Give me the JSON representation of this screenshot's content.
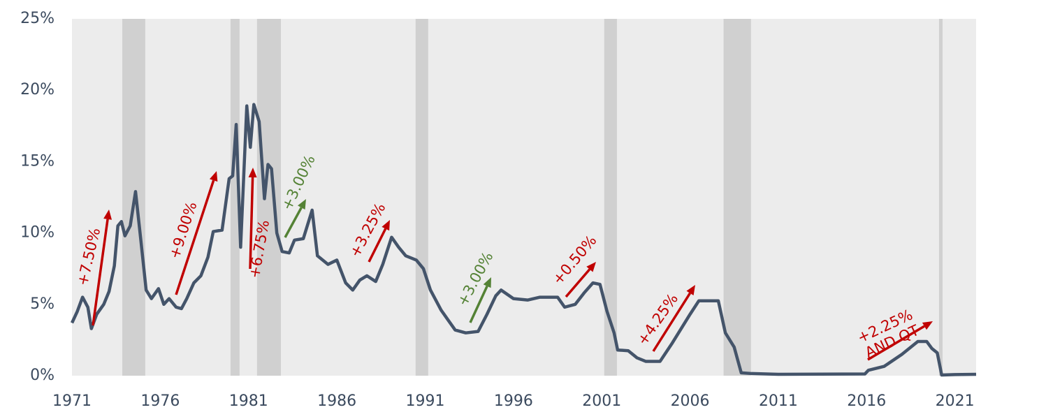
{
  "chart_data": {
    "type": "line",
    "x": [
      1971.0,
      1971.3,
      1971.6,
      1971.9,
      1972.1,
      1972.4,
      1972.8,
      1973.1,
      1973.4,
      1973.6,
      1973.8,
      1974.0,
      1974.3,
      1974.6,
      1974.9,
      1975.2,
      1975.5,
      1975.9,
      1976.2,
      1976.5,
      1976.9,
      1977.2,
      1977.5,
      1977.9,
      1978.3,
      1978.7,
      1979.0,
      1979.5,
      1979.9,
      1980.1,
      1980.3,
      1980.55,
      1980.9,
      1981.1,
      1981.3,
      1981.6,
      1981.9,
      1982.1,
      1982.3,
      1982.6,
      1982.9,
      1983.3,
      1983.6,
      1984.1,
      1984.6,
      1984.9,
      1985.5,
      1986.0,
      1986.5,
      1986.9,
      1987.3,
      1987.7,
      1988.2,
      1988.6,
      1989.1,
      1989.5,
      1989.9,
      1990.5,
      1990.9,
      1991.3,
      1991.9,
      1992.3,
      1992.7,
      1993.3,
      1994.0,
      1994.5,
      1995.0,
      1995.3,
      1996.0,
      1996.8,
      1997.5,
      1998.5,
      1998.9,
      1999.5,
      2000.0,
      2000.5,
      2000.9,
      2001.3,
      2001.7,
      2001.9,
      2002.5,
      2003.0,
      2003.5,
      2004.3,
      2005.0,
      2006.0,
      2006.5,
      2007.6,
      2008.0,
      2008.5,
      2008.9,
      2009.5,
      2011.0,
      2015.9,
      2016.1,
      2017.0,
      2018.0,
      2018.9,
      2019.4,
      2019.7,
      2020.0,
      2020.25,
      2021.0,
      2022.2
    ],
    "series": [
      {
        "color": "#44546a",
        "values": [
          3.7,
          4.5,
          5.5,
          4.8,
          3.3,
          4.3,
          5.0,
          5.9,
          7.7,
          10.5,
          10.8,
          9.8,
          10.5,
          12.9,
          9.5,
          6.0,
          5.4,
          6.1,
          5.0,
          5.4,
          4.8,
          4.7,
          5.4,
          6.5,
          7.0,
          8.3,
          10.1,
          10.2,
          13.8,
          14.0,
          17.6,
          9.0,
          18.9,
          16.0,
          19.0,
          17.8,
          12.4,
          14.8,
          14.5,
          10.0,
          8.7,
          8.6,
          9.5,
          9.6,
          11.6,
          8.4,
          7.8,
          8.1,
          6.5,
          6.0,
          6.7,
          7.0,
          6.6,
          7.8,
          9.7,
          9.0,
          8.4,
          8.1,
          7.5,
          6.0,
          4.6,
          3.9,
          3.2,
          3.0,
          3.1,
          4.3,
          5.6,
          6.0,
          5.4,
          5.3,
          5.5,
          5.5,
          4.8,
          5.0,
          5.8,
          6.5,
          6.4,
          4.5,
          3.0,
          1.8,
          1.75,
          1.25,
          1.0,
          1.0,
          2.3,
          4.3,
          5.25,
          5.25,
          3.0,
          2.0,
          0.2,
          0.15,
          0.1,
          0.12,
          0.38,
          0.66,
          1.5,
          2.4,
          2.4,
          1.9,
          1.6,
          0.05,
          0.08,
          0.1
        ]
      }
    ],
    "shaded_periods": [
      [
        1973.85,
        1975.15
      ],
      [
        1979.98,
        1980.49
      ],
      [
        1981.48,
        1982.83
      ],
      [
        1990.46,
        1991.17
      ],
      [
        2001.14,
        2001.86
      ],
      [
        2007.9,
        2009.45
      ],
      [
        2020.1,
        2020.3
      ]
    ],
    "shade_color": "#d0d0d0",
    "plot_background": "#ececec",
    "xlim": [
      1971,
      2022.2
    ],
    "xticks": [
      1971,
      1976,
      1981,
      1986,
      1991,
      1996,
      2001,
      2006,
      2011,
      2016,
      2021
    ],
    "ylim": [
      0,
      25
    ],
    "yticks": [
      {
        "value": 0,
        "label": "0%"
      },
      {
        "value": 5,
        "label": "5%"
      },
      {
        "value": 10,
        "label": "10%"
      },
      {
        "value": 15,
        "label": "15%"
      },
      {
        "value": 20,
        "label": "20%"
      },
      {
        "value": 25,
        "label": "25%"
      }
    ],
    "annotations": [
      {
        "lines": [
          "+7.50%"
        ],
        "color": "#c00000"
      },
      {
        "lines": [
          "+9.00%"
        ],
        "color": "#c00000"
      },
      {
        "lines": [
          "+6.75%"
        ],
        "color": "#c00000"
      },
      {
        "lines": [
          "+3.00%"
        ],
        "color": "#548235"
      },
      {
        "lines": [
          "+3.25%"
        ],
        "color": "#c00000"
      },
      {
        "lines": [
          "+3.00%"
        ],
        "color": "#548235"
      },
      {
        "lines": [
          "+0.50%"
        ],
        "color": "#c00000"
      },
      {
        "lines": [
          "+4.25%"
        ],
        "color": "#c00000"
      },
      {
        "lines": [
          "+2.25%",
          "AND QT"
        ],
        "color": "#c00000"
      }
    ]
  }
}
